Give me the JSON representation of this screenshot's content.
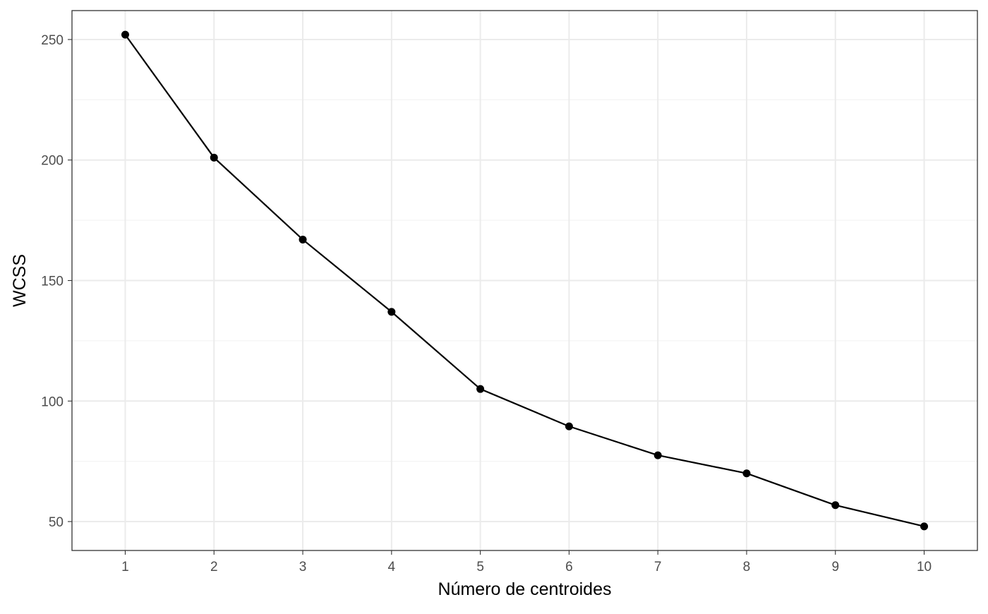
{
  "chart_data": {
    "type": "line",
    "title": "",
    "xlabel": "Número de centroides",
    "ylabel": "WCSS",
    "x": [
      1,
      2,
      3,
      4,
      5,
      6,
      7,
      8,
      9,
      10
    ],
    "series": [
      {
        "values": [
          252,
          201,
          167,
          137,
          105,
          89.5,
          77.5,
          70,
          56.8,
          48
        ]
      }
    ],
    "x_ticks": [
      "1",
      "2",
      "3",
      "4",
      "5",
      "6",
      "7",
      "8",
      "9",
      "10"
    ],
    "y_ticks": [
      "50",
      "100",
      "150",
      "200",
      "250"
    ],
    "xlim": [
      0.4,
      10.6
    ],
    "ylim": [
      38,
      262
    ],
    "grid": true,
    "markers": true,
    "colors": {
      "line": "#000000",
      "point": "#000000",
      "grid_major": "#ebebeb",
      "grid_minor": "#f2f2f2",
      "panel_border": "#333333",
      "background": "#ffffff"
    }
  }
}
